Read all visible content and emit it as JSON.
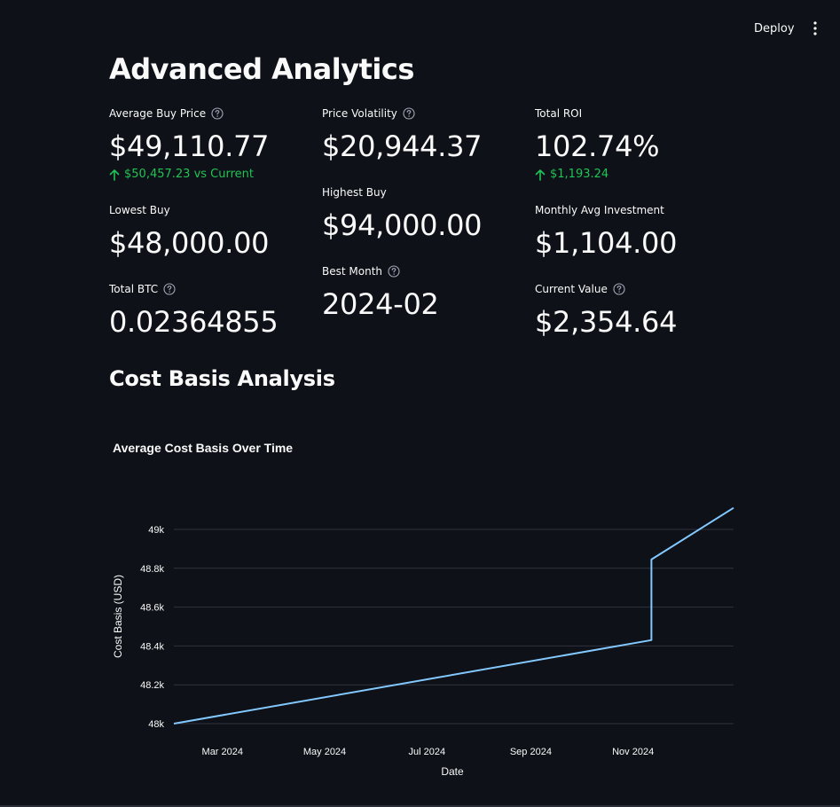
{
  "header": {
    "deploy_label": "Deploy",
    "menu_icon": "more-vertical-icon"
  },
  "page": {
    "title": "Advanced Analytics"
  },
  "metrics": {
    "average_buy_price": {
      "label": "Average Buy Price",
      "value": "$49,110.77",
      "delta": "$50,457.23 vs Current",
      "has_help": true
    },
    "price_volatility": {
      "label": "Price Volatility",
      "value": "$20,944.37",
      "has_help": true
    },
    "total_roi": {
      "label": "Total ROI",
      "value": "102.74%",
      "delta": "$1,193.24",
      "has_help": false
    },
    "lowest_buy": {
      "label": "Lowest Buy",
      "value": "$48,000.00",
      "has_help": false
    },
    "highest_buy": {
      "label": "Highest Buy",
      "value": "$94,000.00",
      "has_help": false
    },
    "monthly_avg_investment": {
      "label": "Monthly Avg Investment",
      "value": "$1,104.00",
      "has_help": false
    },
    "total_btc": {
      "label": "Total BTC",
      "value": "0.02364855",
      "has_help": true
    },
    "best_month": {
      "label": "Best Month",
      "value": "2024-02",
      "has_help": true
    },
    "current_value": {
      "label": "Current Value",
      "value": "$2,354.64",
      "has_help": true
    }
  },
  "section": {
    "title": "Cost Basis Analysis"
  },
  "colors": {
    "background": "#0e1117",
    "text": "#fafafa",
    "delta_positive": "#21c354",
    "line": "#83c9ff",
    "grid": "#31333f"
  },
  "chart_data": {
    "type": "line",
    "title": "Average Cost Basis Over Time",
    "xlabel": "Date",
    "ylabel": "Cost Basis (USD)",
    "x_ticks": [
      "Mar 2024",
      "May 2024",
      "Jul 2024",
      "Sep 2024",
      "Nov 2024"
    ],
    "y_ticks": [
      "48k",
      "48.2k",
      "48.4k",
      "48.6k",
      "48.8k",
      "49k"
    ],
    "xlim": [
      "2024-02-01",
      "2024-12-31"
    ],
    "ylim": [
      48000,
      49000
    ],
    "grid": true,
    "series": [
      {
        "x": [
          "2024-02-01",
          "2024-11-12",
          "2024-11-12",
          "2024-12-31"
        ],
        "y": [
          48000,
          48430,
          48845,
          49111
        ]
      }
    ]
  }
}
